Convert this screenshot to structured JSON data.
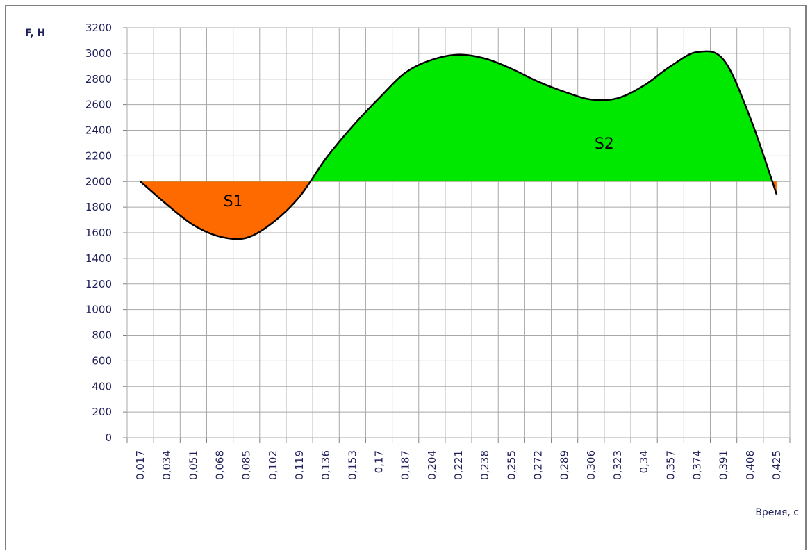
{
  "chart_data": {
    "type": "line",
    "y_label": "F, H",
    "x_label": "Время, с",
    "categories": [
      "0,017",
      "0,034",
      "0,051",
      "0,068",
      "0,085",
      "0,102",
      "0,119",
      "0,136",
      "0,153",
      "0,17",
      "0,187",
      "0,204",
      "0,221",
      "0,238",
      "0,255",
      "0,272",
      "0,289",
      "0,306",
      "0,323",
      "0,34",
      "0,357",
      "0,374",
      "0,391",
      "0,408",
      "0,425"
    ],
    "series": [
      {
        "name": "F",
        "color": "#000000",
        "values": [
          2000,
          1820,
          1660,
          1570,
          1560,
          1680,
          1880,
          2180,
          2430,
          2650,
          2850,
          2950,
          2990,
          2960,
          2880,
          2780,
          2700,
          2640,
          2650,
          2750,
          2900,
          3010,
          2950,
          2500,
          1900
        ]
      }
    ],
    "reference_level": 2000,
    "fill_above_color": "#00e800",
    "fill_below_color": "#ff6a00",
    "annotations": [
      {
        "text": "S1",
        "x": "0,068",
        "y": 1850
      },
      {
        "text": "S2",
        "x": "0,306",
        "y": 2300
      }
    ],
    "ylim": [
      0,
      3200
    ],
    "yticks": [
      0,
      200,
      400,
      600,
      800,
      1000,
      1200,
      1400,
      1600,
      1800,
      2000,
      2200,
      2400,
      2600,
      2800,
      3000,
      3200
    ],
    "grid": true
  }
}
